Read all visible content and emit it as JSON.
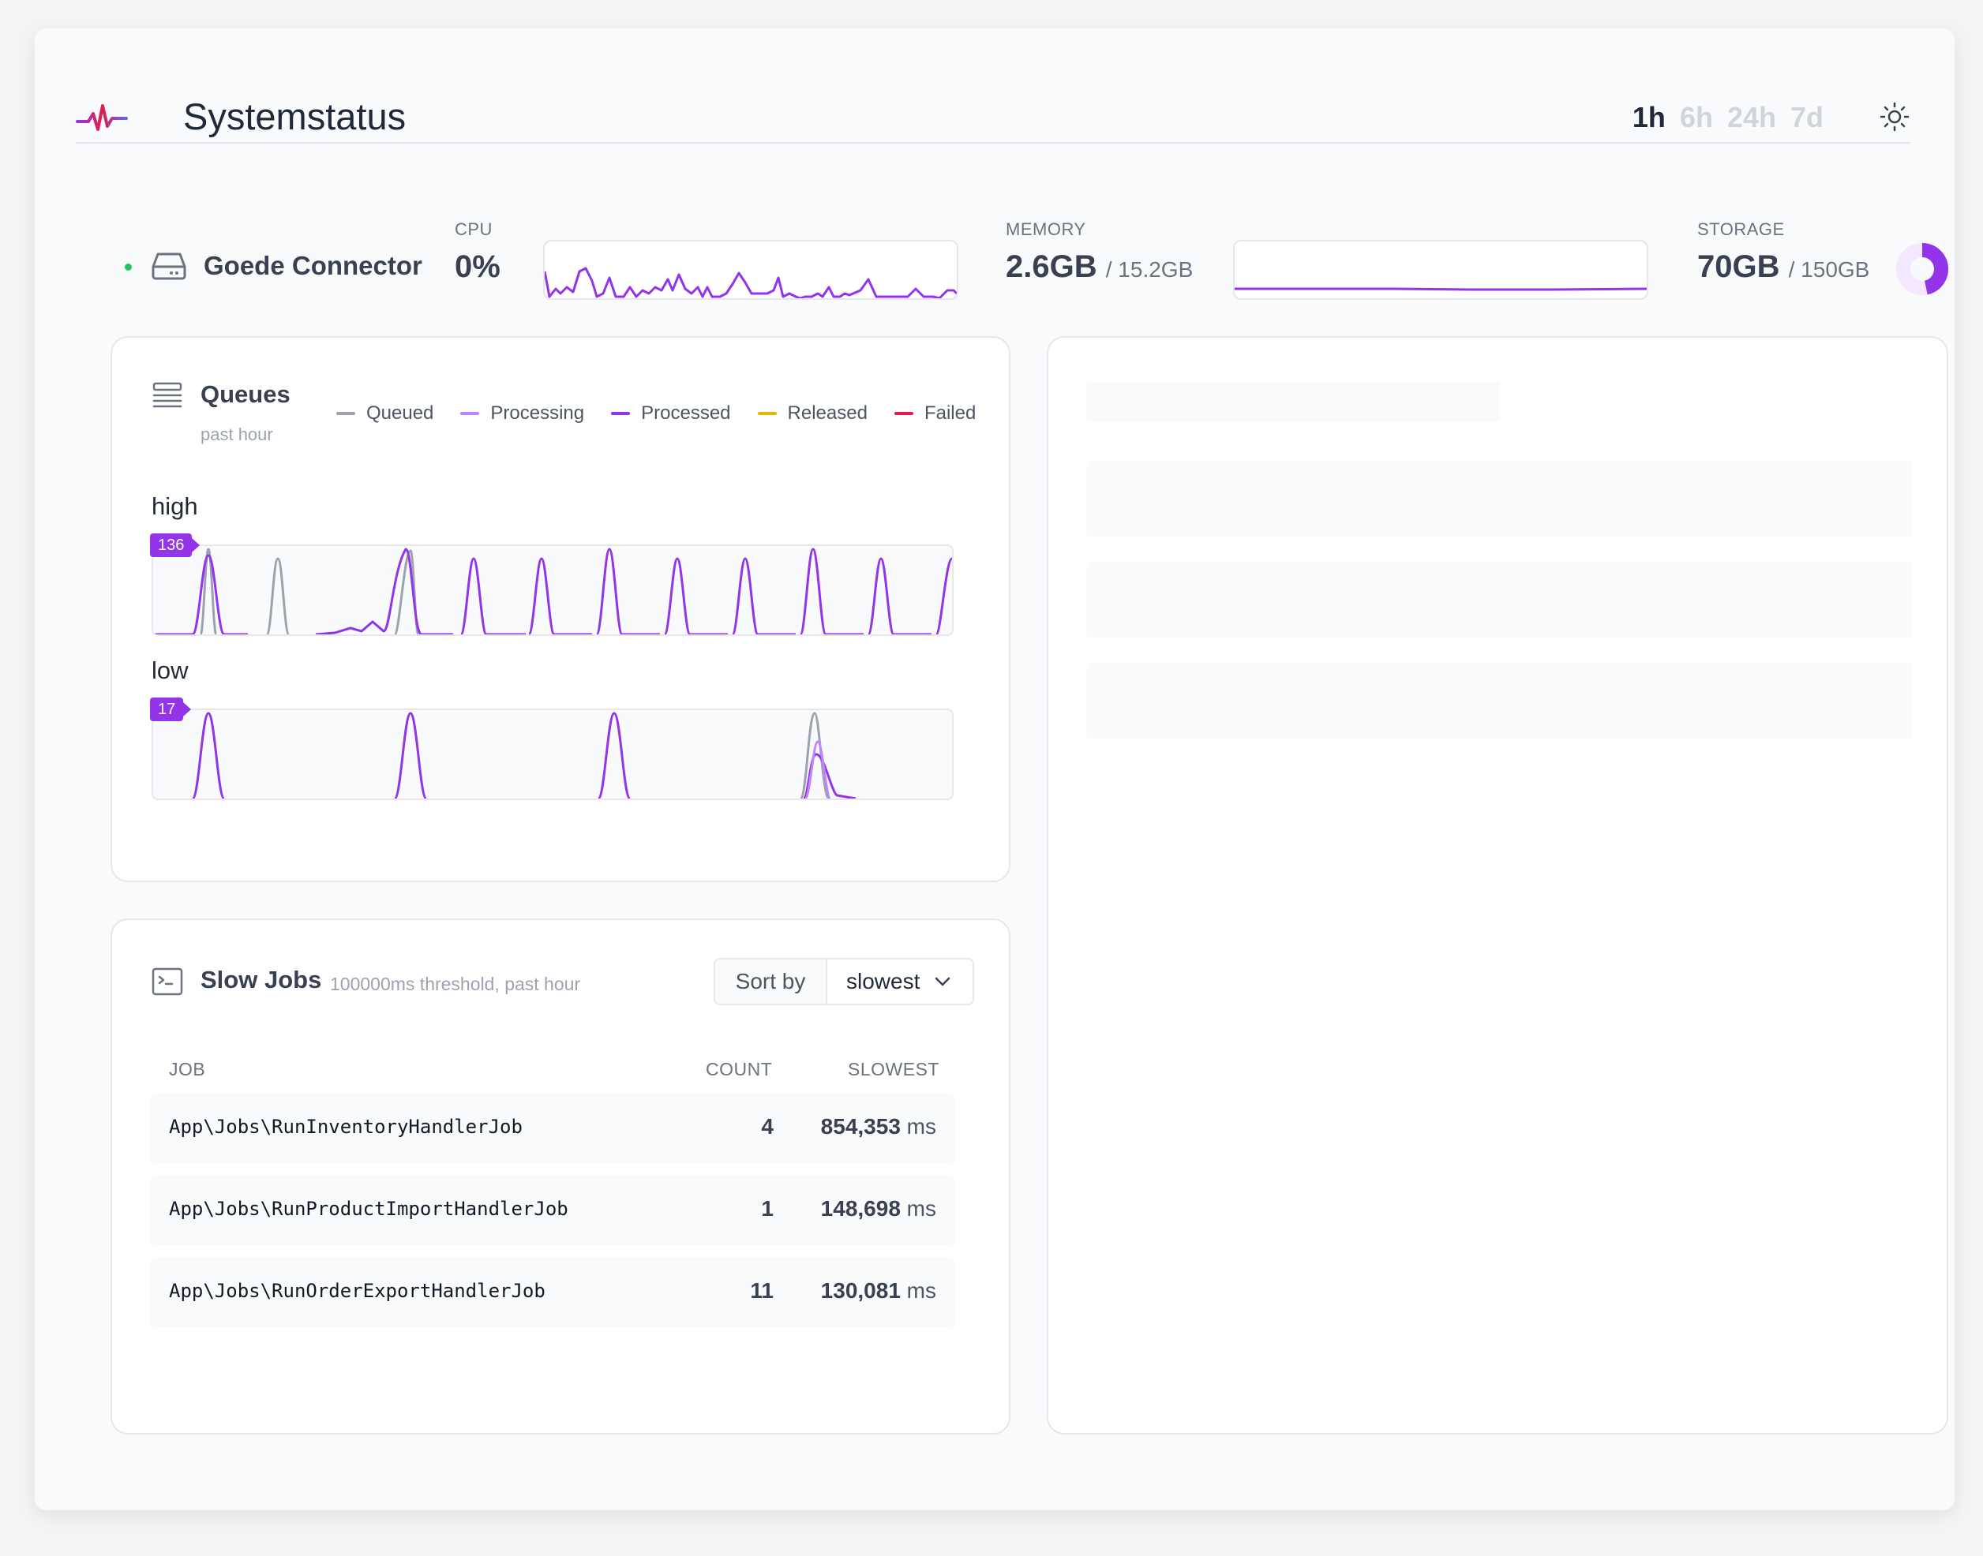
{
  "header": {
    "title": "Systemstatus",
    "periods": [
      "1h",
      "6h",
      "24h",
      "7d"
    ],
    "active_period": "1h"
  },
  "server": {
    "name": "Goede Connector",
    "status": "online",
    "cpu": {
      "label": "CPU",
      "value": "0%"
    },
    "memory": {
      "label": "MEMORY",
      "value": "2.6GB",
      "total": "/ 15.2GB"
    },
    "storage": {
      "label": "STORAGE",
      "value": "70GB",
      "total": "/ 150GB",
      "used_fraction": 0.467
    }
  },
  "queues": {
    "title": "Queues",
    "subtitle": "past hour",
    "legend": [
      {
        "label": "Queued",
        "color": "#9ca3af"
      },
      {
        "label": "Processing",
        "color": "#c084fc"
      },
      {
        "label": "Processed",
        "color": "#9333ea"
      },
      {
        "label": "Released",
        "color": "#eab308"
      },
      {
        "label": "Failed",
        "color": "#e11d48"
      }
    ],
    "items": [
      {
        "name": "high",
        "max": "136"
      },
      {
        "name": "low",
        "max": "17"
      }
    ]
  },
  "slow_jobs": {
    "title": "Slow Jobs",
    "subtitle": "100000ms threshold, past hour",
    "sort_label": "Sort by",
    "sort_value": "slowest",
    "columns": {
      "job": "JOB",
      "count": "COUNT",
      "slowest": "SLOWEST"
    },
    "rows": [
      {
        "job": "App\\Jobs\\RunInventoryHandlerJob",
        "count": "4",
        "slowest": "854,353",
        "unit": "ms"
      },
      {
        "job": "App\\Jobs\\RunProductImportHandlerJob",
        "count": "1",
        "slowest": "148,698",
        "unit": "ms"
      },
      {
        "job": "App\\Jobs\\RunOrderExportHandlerJob",
        "count": "11",
        "slowest": "130,081",
        "unit": "ms"
      }
    ]
  },
  "colors": {
    "accent": "#9333ea",
    "queued": "#9ca3af",
    "status_online": "#22c55e"
  },
  "icons": {
    "logo": "pulse-icon",
    "theme": "sun-icon",
    "server": "hard-drive-icon",
    "queues": "queue-list-icon",
    "slow_jobs": "terminal-icon",
    "sort": "chevron-down-icon"
  }
}
